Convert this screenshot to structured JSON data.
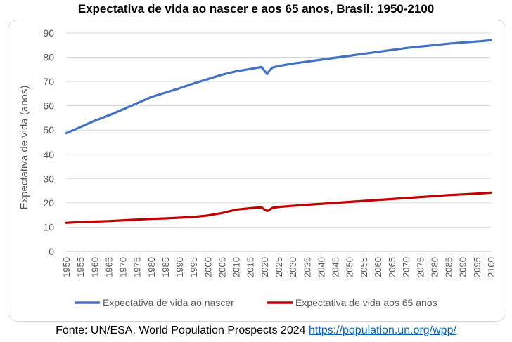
{
  "chart_data": {
    "type": "line",
    "title": "Expectativa de vida ao nascer e aos 65 anos, Brasil: 1950-2100",
    "xlabel": "",
    "ylabel": "Expectativa de vida (anos)",
    "ylim": [
      0,
      90
    ],
    "yticks": [
      0,
      10,
      20,
      30,
      40,
      50,
      60,
      70,
      80,
      90
    ],
    "xlim": [
      1950,
      2100
    ],
    "xticks": [
      1950,
      1955,
      1960,
      1965,
      1970,
      1975,
      1980,
      1985,
      1990,
      1995,
      2000,
      2005,
      2010,
      2015,
      2020,
      2025,
      2030,
      2035,
      2040,
      2045,
      2050,
      2055,
      2060,
      2065,
      2070,
      2075,
      2080,
      2085,
      2090,
      2095,
      2100
    ],
    "grid": true,
    "legend": "bottom",
    "series": [
      {
        "name": "Expectativa de vida ao nascer",
        "color": "#4472c4",
        "x": [
          1950,
          1955,
          1960,
          1965,
          1970,
          1975,
          1980,
          1985,
          1990,
          1995,
          2000,
          2005,
          2010,
          2015,
          2019,
          2020,
          2021,
          2022,
          2023,
          2025,
          2030,
          2035,
          2040,
          2045,
          2050,
          2055,
          2060,
          2065,
          2070,
          2075,
          2080,
          2085,
          2090,
          2095,
          2100
        ],
        "values": [
          48.7,
          51.2,
          53.8,
          56.0,
          58.5,
          61.0,
          63.6,
          65.4,
          67.2,
          69.2,
          71.0,
          72.8,
          74.2,
          75.2,
          76.0,
          74.5,
          73.1,
          74.8,
          75.8,
          76.4,
          77.4,
          78.2,
          79.0,
          79.8,
          80.6,
          81.4,
          82.2,
          83.0,
          83.8,
          84.4,
          85.0,
          85.6,
          86.1,
          86.5,
          87.0
        ]
      },
      {
        "name": "Expectativa de vida aos 65 anos",
        "color": "#c00000",
        "x": [
          1950,
          1955,
          1960,
          1965,
          1970,
          1975,
          1980,
          1985,
          1990,
          1995,
          2000,
          2005,
          2010,
          2015,
          2019,
          2020,
          2021,
          2022,
          2023,
          2025,
          2030,
          2035,
          2040,
          2045,
          2050,
          2055,
          2060,
          2065,
          2070,
          2075,
          2080,
          2085,
          2090,
          2095,
          2100
        ],
        "values": [
          11.8,
          12.1,
          12.3,
          12.5,
          12.8,
          13.1,
          13.4,
          13.6,
          13.9,
          14.2,
          14.8,
          15.8,
          17.2,
          17.8,
          18.2,
          17.3,
          16.6,
          17.3,
          18.0,
          18.3,
          18.8,
          19.2,
          19.6,
          20.0,
          20.4,
          20.8,
          21.2,
          21.6,
          22.0,
          22.4,
          22.8,
          23.2,
          23.5,
          23.8,
          24.2
        ]
      }
    ]
  },
  "footer": {
    "source_text": "Fonte: UN/ESA. World Population Prospects 2024",
    "source_link": "https://population.un.org/wpp/"
  }
}
